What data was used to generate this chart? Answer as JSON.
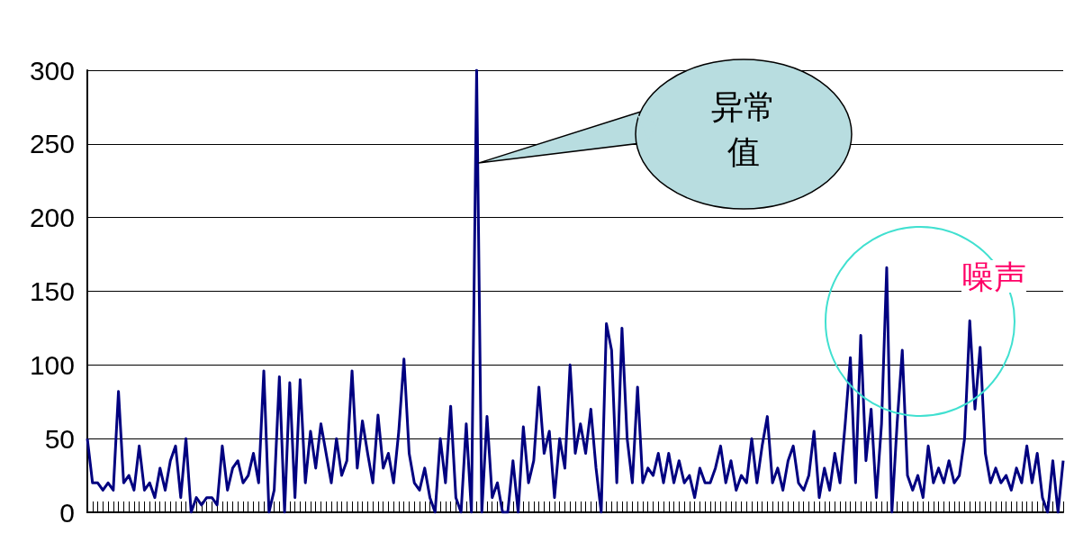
{
  "chart_data": {
    "type": "line",
    "ylim": [
      0,
      300
    ],
    "yticks": [
      0,
      50,
      100,
      150,
      200,
      250,
      300
    ],
    "grid": "y",
    "tick_labels": "y",
    "annotations": [
      "异常值",
      "噪声"
    ],
    "categories": [
      null,
      null,
      null,
      null,
      null,
      null,
      null,
      null,
      null,
      null,
      null,
      null,
      null,
      null,
      null,
      null,
      null,
      null,
      null,
      null,
      null,
      null,
      null,
      null,
      null,
      null,
      null,
      null,
      null,
      null,
      null,
      null,
      null,
      null,
      null,
      null,
      null,
      null,
      null,
      null,
      null,
      null,
      null,
      null,
      null,
      null,
      null,
      null,
      null,
      null,
      null,
      null,
      null,
      null,
      null,
      null,
      null,
      null,
      null,
      null,
      null,
      null,
      null,
      null,
      null,
      null,
      null,
      null,
      null,
      null,
      null,
      null,
      null,
      null,
      null,
      null,
      null,
      null,
      null,
      null,
      null,
      null,
      null,
      null,
      null,
      null,
      null,
      null,
      null,
      null,
      null,
      null,
      null,
      null,
      null,
      null,
      null,
      null,
      null,
      null,
      null,
      null,
      null,
      null,
      null,
      null,
      null,
      null,
      null,
      null,
      null,
      null,
      null,
      null,
      null,
      null,
      null,
      null,
      null,
      null,
      null,
      null,
      null,
      null,
      null,
      null,
      null,
      null,
      null,
      null,
      null,
      null,
      null,
      null,
      null,
      null,
      null,
      null,
      null,
      null,
      null,
      null,
      null,
      null,
      null,
      null,
      null,
      null,
      null,
      null,
      null,
      null,
      null,
      null,
      null,
      null,
      null,
      null,
      null,
      null,
      null,
      null,
      null,
      null,
      null,
      null,
      null,
      null,
      null,
      null,
      null,
      null,
      null,
      null,
      null,
      null,
      null,
      null,
      null,
      null,
      null,
      null,
      null,
      null,
      null,
      null,
      null,
      null,
      null
    ],
    "series": [
      {
        "color": "#000080",
        "values": [
          50,
          20,
          20,
          15,
          20,
          15,
          82,
          20,
          25,
          15,
          45,
          15,
          20,
          10,
          30,
          15,
          35,
          45,
          10,
          50,
          0,
          10,
          5,
          10,
          10,
          5,
          45,
          15,
          30,
          35,
          20,
          25,
          40,
          20,
          96,
          0,
          15,
          92,
          0,
          88,
          10,
          90,
          20,
          55,
          30,
          60,
          40,
          20,
          50,
          25,
          35,
          96,
          30,
          62,
          40,
          20,
          66,
          30,
          40,
          20,
          55,
          104,
          40,
          20,
          15,
          30,
          10,
          0,
          50,
          20,
          72,
          10,
          0,
          60,
          0,
          300,
          0,
          65,
          10,
          20,
          0,
          0,
          35,
          0,
          58,
          20,
          35,
          85,
          40,
          55,
          10,
          50,
          30,
          100,
          40,
          60,
          40,
          70,
          30,
          0,
          128,
          110,
          20,
          125,
          50,
          20,
          85,
          20,
          30,
          25,
          40,
          20,
          40,
          20,
          35,
          20,
          25,
          10,
          30,
          20,
          20,
          30,
          45,
          20,
          35,
          15,
          25,
          20,
          50,
          20,
          45,
          65,
          20,
          30,
          15,
          35,
          45,
          20,
          15,
          25,
          55,
          10,
          30,
          15,
          40,
          20,
          60,
          105,
          20,
          120,
          35,
          70,
          10,
          60,
          166,
          0,
          60,
          110,
          25,
          15,
          25,
          10,
          45,
          20,
          30,
          20,
          35,
          20,
          25,
          50,
          130,
          70,
          112,
          40,
          20,
          30,
          20,
          25,
          15,
          30,
          20,
          45,
          20,
          40,
          10,
          0,
          35,
          0,
          35
        ]
      }
    ]
  }
}
